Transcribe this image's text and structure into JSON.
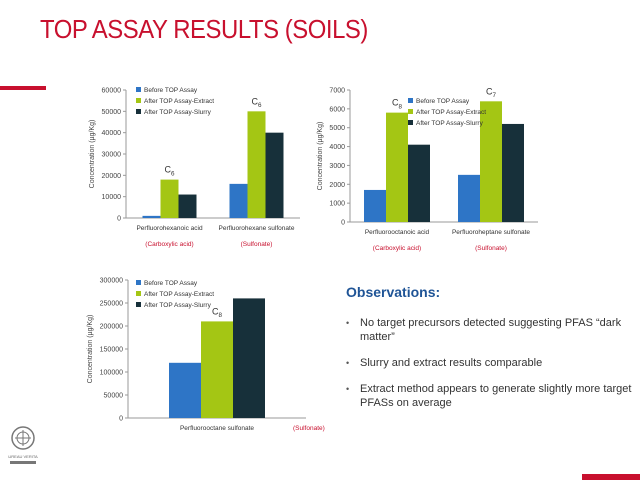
{
  "slide": {
    "title": "TOP ASSAY RESULTS  (SOILS)",
    "colors": {
      "title": "#c8102e",
      "accent": "#c8102e",
      "observations_title": "#1f5496"
    },
    "observations": {
      "title": "Observations:",
      "items": [
        "No target precursors detected suggesting PFAS “dark matter”",
        "Slurry and extract results comparable",
        "Extract method appears to generate slightly more target PFASs  on average"
      ]
    },
    "logo": {
      "icon": "bureau-veritas-seal-icon",
      "text": "BUREAU VERITAS"
    }
  },
  "chart_data": [
    {
      "type": "bar",
      "categories": [
        "Perfluorohexanoic acid",
        "Perfluorohexane sulfonate"
      ],
      "category_groups": [
        "(Carboxylic acid)",
        "(Sulfonate)"
      ],
      "series": [
        {
          "name": "Before TOP Assay",
          "values": [
            1000,
            16000
          ],
          "color": "#2e75c6"
        },
        {
          "name": "After TOP Assay-Extract",
          "values": [
            18000,
            50000
          ],
          "color": "#a4c614"
        },
        {
          "name": "After TOP Assay-Slurry",
          "values": [
            11000,
            40000
          ],
          "color": "#17303a"
        }
      ],
      "annotations": [
        "C6",
        "C6"
      ],
      "ylabel": "Concentration (µg/Kg)",
      "ylim": [
        0,
        60000
      ],
      "yticks": [
        0,
        10000,
        20000,
        30000,
        40000,
        50000,
        60000
      ],
      "legend": "top-left",
      "grid": false
    },
    {
      "type": "bar",
      "categories": [
        "Perfluorooctanoic acid",
        "Perfluoroheptane sulfonate"
      ],
      "category_groups": [
        "(Carboxylic acid)",
        "(Sulfonate)"
      ],
      "series": [
        {
          "name": "Before TOP Assay",
          "values": [
            1700,
            2500
          ],
          "color": "#2e75c6"
        },
        {
          "name": "After TOP Assay-Extract",
          "values": [
            5800,
            6400
          ],
          "color": "#a4c614"
        },
        {
          "name": "After TOP Assay-Slurry",
          "values": [
            4100,
            5200
          ],
          "color": "#17303a"
        }
      ],
      "annotations": [
        "C8",
        "C7"
      ],
      "ylabel": "Concentration (µg/Kg)",
      "ylim": [
        0,
        7000
      ],
      "yticks": [
        0,
        1000,
        2000,
        3000,
        4000,
        5000,
        6000,
        7000
      ],
      "legend": "top-center",
      "grid": false
    },
    {
      "type": "bar",
      "categories": [
        "Perfluorooctane sulfonate"
      ],
      "category_groups": [
        "(Sulfonate)"
      ],
      "series": [
        {
          "name": "Before TOP Assay",
          "values": [
            120000
          ],
          "color": "#2e75c6"
        },
        {
          "name": "After TOP Assay-Extract",
          "values": [
            210000
          ],
          "color": "#a4c614"
        },
        {
          "name": "After TOP Assay-Slurry",
          "values": [
            260000
          ],
          "color": "#17303a"
        }
      ],
      "annotations": [
        "C8"
      ],
      "ylabel": "Concentration (µg/Kg)",
      "ylim": [
        0,
        300000
      ],
      "yticks": [
        0,
        50000,
        100000,
        150000,
        200000,
        250000,
        300000
      ],
      "legend": "top-left",
      "grid": false
    }
  ]
}
